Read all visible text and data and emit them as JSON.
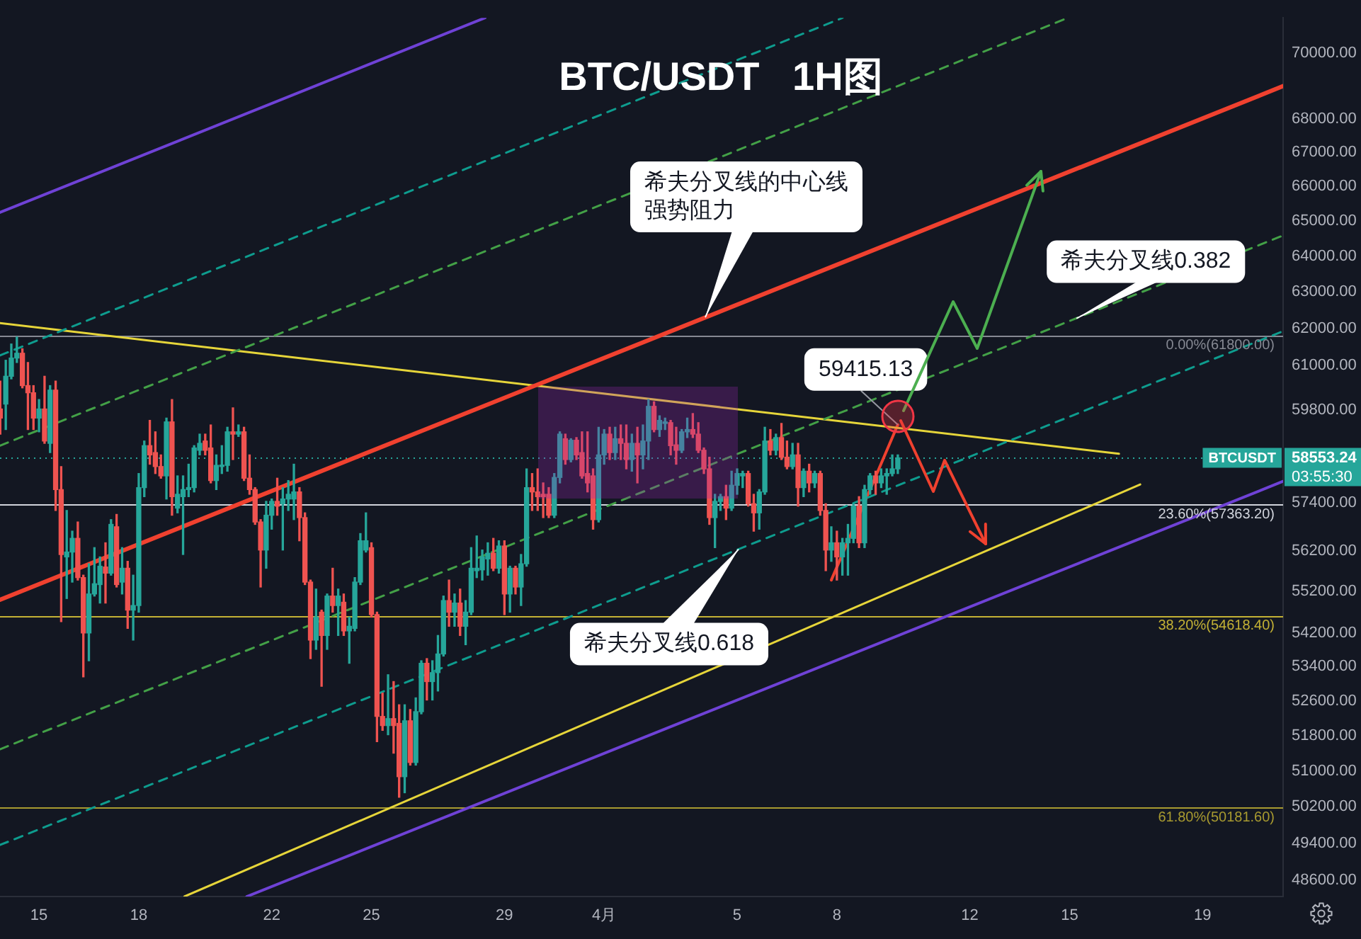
{
  "chart_data": {
    "type": "candlestick",
    "title": "BTC/USDT   1H图",
    "log": "y",
    "xlim": [
      "--03-13T19:50",
      "--04-21T10:10"
    ],
    "ylim": [
      48250,
      71100
    ],
    "xticks": [
      {
        "value": "--03-15",
        "label": "15"
      },
      {
        "value": "--03-18",
        "label": "18"
      },
      {
        "value": "--03-22",
        "label": "22"
      },
      {
        "value": "--03-25",
        "label": "25"
      },
      {
        "value": "--03-29",
        "label": "29"
      },
      {
        "value": "--04-01",
        "label": "4月"
      },
      {
        "value": "--04-05",
        "label": "5"
      },
      {
        "value": "--04-08",
        "label": "8"
      },
      {
        "value": "--04-12",
        "label": "12"
      },
      {
        "value": "--04-15",
        "label": "15"
      },
      {
        "value": "--04-19",
        "label": "19"
      }
    ],
    "yticks": [
      {
        "value": 48600,
        "label": "48600.00"
      },
      {
        "value": 49400,
        "label": "49400.00"
      },
      {
        "value": 50200,
        "label": "50200.00"
      },
      {
        "value": 51000,
        "label": "51000.00"
      },
      {
        "value": 51800,
        "label": "51800.00"
      },
      {
        "value": 52600,
        "label": "52600.00"
      },
      {
        "value": 53400,
        "label": "53400.00"
      },
      {
        "value": 54200,
        "label": "54200.00"
      },
      {
        "value": 55200,
        "label": "55200.00"
      },
      {
        "value": 56200,
        "label": "56200.00"
      },
      {
        "value": 57400,
        "label": "57400.00"
      },
      58553.24,
      {
        "value": 59800,
        "label": "59800.00"
      },
      {
        "value": 61000,
        "label": "61000.00"
      },
      {
        "value": 62000,
        "label": "62000.00"
      },
      {
        "value": 63000,
        "label": "63000.00"
      },
      {
        "value": 64000,
        "label": "64000.00"
      },
      {
        "value": 65000,
        "label": "65000.00"
      },
      {
        "value": 66000,
        "label": "66000.00"
      },
      {
        "value": 67000,
        "label": "67000.00"
      },
      {
        "value": 68000,
        "label": "68000.00"
      },
      {
        "value": 70000,
        "label": "70000.00"
      }
    ],
    "x": [
      "--03-13T20:00",
      "--03-14T00:00",
      "--03-14T04:00",
      "--03-14T08:00",
      "--03-14T12:00",
      "--03-14T16:00",
      "--03-14T20:00",
      "--03-15T00:00",
      "--03-15T04:00",
      "--03-15T08:00",
      "--03-15T12:00",
      "--03-15T16:00",
      "--03-15T20:00",
      "--03-16T00:00",
      "--03-16T04:00",
      "--03-16T08:00",
      "--03-16T12:00",
      "--03-16T16:00",
      "--03-16T20:00",
      "--03-17T00:00",
      "--03-17T04:00",
      "--03-17T08:00",
      "--03-17T12:00",
      "--03-17T16:00",
      "--03-17T20:00",
      "--03-18T00:00",
      "--03-18T04:00",
      "--03-18T08:00",
      "--03-18T12:00",
      "--03-18T16:00",
      "--03-18T20:00",
      "--03-19T00:00",
      "--03-19T04:00",
      "--03-19T08:00",
      "--03-19T12:00",
      "--03-19T16:00",
      "--03-19T20:00",
      "--03-20T00:00",
      "--03-20T04:00",
      "--03-20T08:00",
      "--03-20T12:00",
      "--03-20T16:00",
      "--03-20T20:00",
      "--03-21T00:00",
      "--03-21T04:00",
      "--03-21T08:00",
      "--03-21T12:00",
      "--03-21T16:00",
      "--03-21T20:00",
      "--03-22T00:00",
      "--03-22T04:00",
      "--03-22T08:00",
      "--03-22T12:00",
      "--03-22T16:00",
      "--03-22T20:00",
      "--03-23T00:00",
      "--03-23T04:00",
      "--03-23T08:00",
      "--03-23T12:00",
      "--03-23T16:00",
      "--03-23T20:00",
      "--03-24T00:00",
      "--03-24T04:00",
      "--03-24T08:00",
      "--03-24T12:00",
      "--03-24T16:00",
      "--03-24T20:00",
      "--03-25T00:00",
      "--03-25T04:00",
      "--03-25T08:00",
      "--03-25T12:00",
      "--03-25T16:00",
      "--03-25T20:00",
      "--03-26T00:00",
      "--03-26T04:00",
      "--03-26T08:00",
      "--03-26T12:00",
      "--03-26T16:00",
      "--03-26T20:00",
      "--03-27T00:00",
      "--03-27T04:00",
      "--03-27T08:00",
      "--03-27T12:00",
      "--03-27T16:00",
      "--03-27T20:00",
      "--03-28T00:00",
      "--03-28T04:00",
      "--03-28T08:00",
      "--03-28T12:00",
      "--03-28T16:00",
      "--03-28T20:00",
      "--03-29T00:00",
      "--03-29T04:00",
      "--03-29T08:00",
      "--03-29T12:00",
      "--03-29T16:00",
      "--03-29T20:00",
      "--03-30T00:00",
      "--03-30T04:00",
      "--03-30T08:00",
      "--03-30T12:00",
      "--03-30T16:00",
      "--03-30T20:00",
      "--03-31T00:00",
      "--03-31T04:00",
      "--03-31T08:00",
      "--03-31T12:00",
      "--03-31T16:00",
      "--03-31T20:00",
      "--04-01T00:00",
      "--04-01T04:00",
      "--04-01T08:00",
      "--04-01T12:00",
      "--04-01T16:00",
      "--04-01T20:00",
      "--04-02T00:00",
      "--04-02T04:00",
      "--04-02T08:00",
      "--04-02T12:00",
      "--04-02T16:00",
      "--04-02T20:00",
      "--04-03T00:00",
      "--04-03T04:00",
      "--04-03T08:00",
      "--04-03T12:00",
      "--04-03T16:00",
      "--04-03T20:00",
      "--04-04T00:00",
      "--04-04T04:00",
      "--04-04T08:00",
      "--04-04T12:00",
      "--04-04T16:00",
      "--04-04T20:00",
      "--04-05T00:00",
      "--04-05T04:00",
      "--04-05T08:00",
      "--04-05T12:00",
      "--04-05T16:00",
      "--04-05T20:00",
      "--04-06T00:00",
      "--04-06T04:00",
      "--04-06T08:00",
      "--04-06T12:00",
      "--04-06T16:00",
      "--04-06T20:00",
      "--04-07T00:00",
      "--04-07T04:00",
      "--04-07T08:00",
      "--04-07T12:00",
      "--04-07T16:00",
      "--04-07T20:00",
      "--04-08T00:00",
      "--04-08T04:00",
      "--04-08T08:00",
      "--04-08T12:00",
      "--04-08T16:00",
      "--04-08T20:00",
      "--04-09T00:00",
      "--04-09T04:00",
      "--04-09T08:00",
      "--04-09T12:00",
      "--04-09T16:00",
      "--04-09T20:00"
    ],
    "ohlc": [
      [
        59830,
        60570,
        59170,
        59590
      ],
      [
        59960,
        61130,
        59290,
        60700
      ],
      [
        60700,
        61570,
        60630,
        61190
      ],
      [
        61190,
        61760,
        61070,
        61320
      ],
      [
        61320,
        61440,
        60390,
        60450
      ],
      [
        60450,
        61070,
        59290,
        60260
      ],
      [
        60260,
        60450,
        59290,
        59590
      ],
      [
        59590,
        60080,
        59230,
        59830
      ],
      [
        59830,
        60700,
        58930,
        58990
      ],
      [
        58930,
        60450,
        58690,
        60330
      ],
      [
        60330,
        60570,
        57210,
        57740
      ],
      [
        57740,
        58330,
        54470,
        56110
      ],
      [
        56050,
        57210,
        55030,
        56170
      ],
      [
        56170,
        56690,
        55430,
        56510
      ],
      [
        56510,
        56920,
        55480,
        55540
      ],
      [
        55540,
        55600,
        53160,
        54200
      ],
      [
        54200,
        55880,
        53540,
        55140
      ],
      [
        55140,
        56280,
        55090,
        55390
      ],
      [
        55370,
        56050,
        54920,
        55820
      ],
      [
        55800,
        56400,
        54920,
        55650
      ],
      [
        55650,
        56980,
        55600,
        56860
      ],
      [
        56800,
        57110,
        55310,
        55370
      ],
      [
        55430,
        56280,
        55140,
        55770
      ],
      [
        55770,
        55940,
        54310,
        54750
      ],
      [
        54750,
        55600,
        54030,
        54860
      ],
      [
        54860,
        58150,
        54700,
        57790
      ],
      [
        57790,
        58990,
        57560,
        58870
      ],
      [
        58870,
        59530,
        58390,
        58630
      ],
      [
        58690,
        59230,
        58150,
        58330
      ],
      [
        58330,
        58630,
        58030,
        58090
      ],
      [
        58090,
        59590,
        57500,
        59490
      ],
      [
        59490,
        60080,
        57090,
        57560
      ],
      [
        57270,
        58090,
        57150,
        57620
      ],
      [
        57560,
        58090,
        56110,
        57740
      ],
      [
        57740,
        58390,
        57560,
        57790
      ],
      [
        57790,
        58870,
        57680,
        58810
      ],
      [
        58750,
        59170,
        58630,
        58930
      ],
      [
        58990,
        59170,
        58630,
        58750
      ],
      [
        58810,
        59410,
        57910,
        57970
      ],
      [
        57970,
        58630,
        57740,
        58360
      ],
      [
        58330,
        58870,
        58150,
        58360
      ],
      [
        58360,
        59350,
        58210,
        59230
      ],
      [
        59230,
        59860,
        58510,
        59170
      ],
      [
        59170,
        59410,
        59110,
        59230
      ],
      [
        59230,
        59350,
        57970,
        58030
      ],
      [
        58030,
        58630,
        57620,
        57740
      ],
      [
        57740,
        57790,
        56860,
        56920
      ],
      [
        56920,
        56980,
        55310,
        56220
      ],
      [
        56220,
        57440,
        55770,
        57090
      ],
      [
        57090,
        57500,
        56740,
        57440
      ],
      [
        57440,
        58030,
        57090,
        57320
      ],
      [
        57380,
        57790,
        56220,
        57500
      ],
      [
        57500,
        57970,
        57210,
        57620
      ],
      [
        57500,
        58390,
        56980,
        57680
      ],
      [
        57680,
        57790,
        56450,
        57030
      ],
      [
        57030,
        57150,
        55370,
        55430
      ],
      [
        55430,
        55480,
        53590,
        54030
      ],
      [
        54030,
        55260,
        53810,
        54580
      ],
      [
        54700,
        54750,
        52940,
        54140
      ],
      [
        54140,
        55140,
        53810,
        55090
      ],
      [
        55090,
        55770,
        54700,
        54860
      ],
      [
        54860,
        55260,
        54140,
        55090
      ],
      [
        54940,
        55140,
        54140,
        54250
      ],
      [
        54250,
        54580,
        53480,
        54360
      ],
      [
        54310,
        55540,
        54250,
        55430
      ],
      [
        55430,
        56630,
        55370,
        56450
      ],
      [
        56220,
        57150,
        56170,
        56450
      ],
      [
        56280,
        56400,
        54580,
        54640
      ],
      [
        54640,
        54700,
        51660,
        52240
      ],
      [
        52240,
        52780,
        51920,
        52030
      ],
      [
        52030,
        53210,
        51820,
        52190
      ],
      [
        52190,
        53050,
        51400,
        52030
      ],
      [
        52080,
        52510,
        50410,
        50870
      ],
      [
        50870,
        52510,
        50510,
        52140
      ],
      [
        52140,
        52400,
        51130,
        51190
      ],
      [
        51190,
        52670,
        51130,
        52350
      ],
      [
        52350,
        53540,
        52300,
        53480
      ],
      [
        53480,
        53590,
        52620,
        53050
      ],
      [
        53050,
        53540,
        52620,
        53260
      ],
      [
        53260,
        54140,
        52830,
        53700
      ],
      [
        53700,
        55090,
        53650,
        54980
      ],
      [
        54980,
        55480,
        54360,
        54700
      ],
      [
        54700,
        55140,
        54360,
        54920
      ],
      [
        54920,
        55260,
        54140,
        54360
      ],
      [
        54360,
        54980,
        53920,
        54700
      ],
      [
        54700,
        56280,
        54640,
        55770
      ],
      [
        55710,
        56570,
        55540,
        55770
      ],
      [
        55730,
        56220,
        55480,
        56050
      ],
      [
        56000,
        56400,
        55600,
        56140
      ],
      [
        56140,
        56510,
        55710,
        55770
      ],
      [
        55770,
        56450,
        55650,
        56320
      ],
      [
        56320,
        56450,
        54640,
        55140
      ],
      [
        55140,
        55820,
        54700,
        55770
      ],
      [
        55770,
        55820,
        55140,
        55310
      ],
      [
        55310,
        56110,
        54860,
        55880
      ],
      [
        55880,
        58270,
        55820,
        57790
      ],
      [
        57790,
        58150,
        57210,
        57680
      ],
      [
        57680,
        58270,
        57210,
        57560
      ],
      [
        57620,
        57910,
        57030,
        57560
      ],
      [
        57620,
        57790,
        57030,
        57090
      ],
      [
        57090,
        58150,
        57030,
        58050
      ],
      [
        58050,
        59230,
        57910,
        59170
      ],
      [
        59050,
        59170,
        58390,
        58510
      ],
      [
        58510,
        59050,
        58450,
        59010
      ],
      [
        59010,
        59080,
        58510,
        58630
      ],
      [
        58690,
        59230,
        58030,
        58090
      ],
      [
        58150,
        59230,
        57680,
        57910
      ],
      [
        58090,
        58270,
        56740,
        56980
      ],
      [
        56980,
        59350,
        56920,
        58630
      ],
      [
        58630,
        59290,
        58390,
        59170
      ],
      [
        59170,
        59350,
        58510,
        58690
      ],
      [
        58690,
        59350,
        58510,
        59050
      ],
      [
        59050,
        59410,
        58510,
        58930
      ],
      [
        58930,
        59410,
        58270,
        58510
      ],
      [
        58510,
        59170,
        58210,
        58930
      ],
      [
        58930,
        59350,
        57910,
        58630
      ],
      [
        58630,
        59410,
        58270,
        58990
      ],
      [
        58990,
        60080,
        58510,
        59900
      ],
      [
        59900,
        60020,
        59230,
        59290
      ],
      [
        59290,
        59650,
        59110,
        59530
      ],
      [
        59450,
        59590,
        59290,
        59490
      ],
      [
        59470,
        59530,
        58630,
        58870
      ],
      [
        58890,
        59350,
        58390,
        58750
      ],
      [
        58750,
        59290,
        58690,
        59230
      ],
      [
        59230,
        59590,
        59080,
        59290
      ],
      [
        59290,
        59710,
        59080,
        59170
      ],
      [
        59170,
        59470,
        58690,
        58750
      ],
      [
        58750,
        58810,
        58150,
        58270
      ],
      [
        58270,
        58570,
        56860,
        57030
      ],
      [
        57030,
        57620,
        56280,
        57440
      ],
      [
        57440,
        57620,
        57210,
        57560
      ],
      [
        57560,
        57850,
        56980,
        57270
      ],
      [
        57270,
        58210,
        57210,
        57850
      ],
      [
        57850,
        58270,
        57620,
        58150
      ],
      [
        58090,
        58210,
        57790,
        58150
      ],
      [
        58150,
        58210,
        57320,
        57380
      ],
      [
        57380,
        57620,
        56690,
        57150
      ],
      [
        57150,
        57740,
        56740,
        57680
      ],
      [
        57680,
        59350,
        57620,
        58990
      ],
      [
        58990,
        59290,
        58630,
        58750
      ],
      [
        58750,
        59170,
        58630,
        59080
      ],
      [
        59080,
        59450,
        58510,
        58570
      ],
      [
        58570,
        58990,
        58270,
        58330
      ],
      [
        58330,
        58930,
        58270,
        58630
      ],
      [
        58630,
        58930,
        57320,
        57790
      ],
      [
        57790,
        58270,
        57560,
        58210
      ],
      [
        58210,
        58390,
        57680,
        57910
      ],
      [
        57910,
        58210,
        57790,
        58150
      ],
      [
        58150,
        58210,
        57090,
        57210
      ],
      [
        57210,
        57380,
        55710,
        56220
      ],
      [
        56220,
        56800,
        55940,
        56400
      ],
      [
        56400,
        56690,
        55480,
        56050
      ],
      [
        56050,
        56510,
        55600,
        56400
      ],
      [
        56400,
        56860,
        55600,
        56510
      ],
      [
        56510,
        57380,
        56400,
        57320
      ],
      [
        57320,
        57560,
        56280,
        56400
      ],
      [
        56400,
        57850,
        56280,
        57740
      ],
      [
        57740,
        58150,
        57620,
        58090
      ],
      [
        58090,
        58210,
        57620,
        57910
      ],
      [
        57910,
        58270,
        57790,
        58090
      ],
      [
        58090,
        58270,
        57620,
        58150
      ],
      [
        58150,
        58630,
        58090,
        58270
      ],
      [
        58270,
        58630,
        58150,
        58553.24
      ]
    ],
    "colors": [
      "#ef5350",
      "#26a69a",
      "#26a69a",
      "#26a69a",
      "#ef5350",
      "#ef5350",
      "#ef5350",
      "#26a69a",
      "#ef5350",
      "#26a69a",
      "#ef5350",
      "#ef5350",
      "#26a69a",
      "#26a69a",
      "#ef5350",
      "#ef5350",
      "#26a69a",
      "#26a69a",
      "#26a69a",
      "#ef5350",
      "#26a69a",
      "#ef5350",
      "#26a69a",
      "#ef5350",
      "#26a69a",
      "#26a69a",
      "#26a69a",
      "#ef5350",
      "#ef5350",
      "#ef5350",
      "#26a69a",
      "#ef5350",
      "#26a69a",
      "#26a69a",
      "#26a69a",
      "#26a69a",
      "#26a69a",
      "#ef5350",
      "#ef5350",
      "#26a69a",
      "#26a69a",
      "#26a69a",
      "#ef5350",
      "#26a69a",
      "#ef5350",
      "#ef5350",
      "#ef5350",
      "#ef5350",
      "#26a69a",
      "#26a69a",
      "#ef5350",
      "#26a69a",
      "#26a69a",
      "#26a69a",
      "#ef5350",
      "#ef5350",
      "#ef5350",
      "#26a69a",
      "#ef5350",
      "#26a69a",
      "#ef5350",
      "#26a69a",
      "#ef5350",
      "#26a69a",
      "#26a69a",
      "#26a69a",
      "#26a69a",
      "#ef5350",
      "#ef5350",
      "#ef5350",
      "#26a69a",
      "#ef5350",
      "#ef5350",
      "#26a69a",
      "#ef5350",
      "#26a69a",
      "#26a69a",
      "#ef5350",
      "#26a69a",
      "#26a69a",
      "#26a69a",
      "#ef5350",
      "#26a69a",
      "#ef5350",
      "#26a69a",
      "#26a69a",
      "#26a69a",
      "#26a69a",
      "#26a69a",
      "#ef5350",
      "#26a69a",
      "#ef5350",
      "#26a69a",
      "#ef5350",
      "#26a69a",
      "#26a69a",
      "#ef5350",
      "#ef5350",
      "#ef5350",
      "#ef5350",
      "#26a69a",
      "#26a69a",
      "#ef5350",
      "#26a69a",
      "#ef5350",
      "#ef5350",
      "#ef5350",
      "#ef5350",
      "#26a69a",
      "#26a69a",
      "#ef5350",
      "#26a69a",
      "#ef5350",
      "#ef5350",
      "#26a69a",
      "#ef5350",
      "#26a69a",
      "#26a69a",
      "#ef5350",
      "#26a69a",
      "#26a69a",
      "#ef5350",
      "#ef5350",
      "#26a69a",
      "#26a69a",
      "#ef5350",
      "#ef5350",
      "#ef5350",
      "#ef5350",
      "#26a69a",
      "#26a69a",
      "#ef5350",
      "#26a69a",
      "#26a69a",
      "#26a69a",
      "#ef5350",
      "#ef5350",
      "#26a69a",
      "#26a69a",
      "#ef5350",
      "#26a69a",
      "#ef5350",
      "#ef5350",
      "#26a69a",
      "#ef5350",
      "#26a69a",
      "#ef5350",
      "#26a69a",
      "#ef5350",
      "#ef5350",
      "#26a69a",
      "#ef5350",
      "#26a69a",
      "#26a69a",
      "#26a69a",
      "#ef5350",
      "#26a69a",
      "#26a69a",
      "#ef5350",
      "#26a69a",
      "#26a69a",
      "#26a69a",
      "#26a69a"
    ],
    "series": [
      {
        "type": "line",
        "x": [
          "--03-13T19:50",
          "--03-28T10:00"
        ],
        "values": [
          65250,
          71100
        ],
        "color": "#6f42d6",
        "line_style": "solid"
      },
      {
        "type": "line",
        "x": [
          "--03-13T19:50",
          "--04-08T04:10"
        ],
        "values": [
          61260,
          71100
        ],
        "color": "#0e9c8e",
        "line_style": "dashed"
      },
      {
        "type": "line",
        "x": [
          "--03-13T19:50",
          "--04-14T22:50"
        ],
        "values": [
          58870,
          71100
        ],
        "color": "#43a047",
        "line_style": "dashed"
      },
      {
        "type": "line",
        "x": [
          "--03-13T19:50",
          "--04-21T10:10"
        ],
        "values": [
          55000,
          68990
        ],
        "color": "#f0412f",
        "line_style": "solid"
      },
      {
        "type": "line",
        "x": [
          "--03-13T19:50",
          "--04-21T10:10"
        ],
        "values": [
          51490,
          64590
        ],
        "color": "#43a047",
        "line_style": "dashed"
      },
      {
        "type": "line",
        "x": [
          "--03-13T19:50",
          "--04-21T10:10"
        ],
        "values": [
          49360,
          61920
        ],
        "color": "#0e9c8e",
        "line_style": "dashed"
      },
      {
        "type": "line",
        "x": [
          "--03-19T09:00",
          "--04-17T03:00"
        ],
        "values": [
          48250,
          57870
        ],
        "color": "#e6d53a",
        "line_style": "solid"
      },
      {
        "type": "line",
        "x": [
          "--03-21T06:00",
          "--04-21T10:10"
        ],
        "values": [
          48250,
          57950
        ],
        "color": "#6f42d6",
        "line_style": "solid"
      },
      {
        "type": "line",
        "x": [
          "--03-13T19:50",
          "--04-16T11:40"
        ],
        "values": [
          62140,
          58660
        ],
        "color": "#e6d53a",
        "line_style": "solid"
      },
      {
        "type": "line",
        "x": [
          "--04-07T20:00",
          "--04-09T20:00"
        ],
        "values": [
          55480,
          59415.13
        ],
        "color": "#f0412f",
        "line_style": "solid"
      }
    ],
    "ref_lines": [
      {
        "axis": "y",
        "value": 61800,
        "label": "0.00%(61800.00)",
        "color": "#868993"
      },
      {
        "axis": "y",
        "value": 57363.2,
        "label": "23.60%(57363.20)",
        "color": "#d1d4dc"
      },
      {
        "axis": "y",
        "value": 54618.4,
        "label": "38.20%(54618.40)",
        "color": "#c3b135"
      },
      {
        "axis": "y",
        "value": 50181.6,
        "label": "61.80%(50181.60)",
        "color": "#a89a30"
      },
      {
        "axis": "y",
        "value": 58553.24,
        "label": "BTCUSDT",
        "color": "#26a69a",
        "line_style": "dotted"
      }
    ],
    "annotations": [
      {
        "text": "希夫分叉线的中心线强势阻力",
        "x": "--04-04T01:00",
        "y": 62300
      },
      {
        "text": "希夫分叉线0.382",
        "x": "--04-15T05:00",
        "y": 62270
      },
      {
        "text": "希夫分叉线0.618",
        "x": "--04-05T01:00",
        "y": 56240
      },
      {
        "text": "59415.13",
        "x": "--04-09T20:00",
        "y": 59415.13
      },
      "03:55:30"
    ]
  }
}
